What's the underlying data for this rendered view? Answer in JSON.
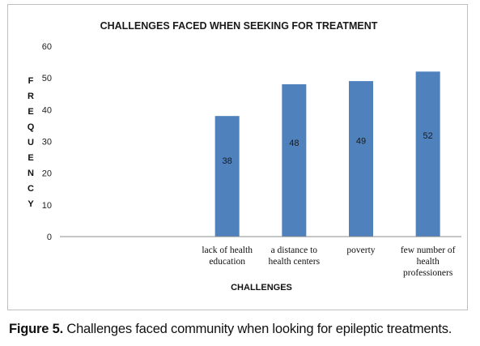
{
  "chart_data": {
    "type": "bar",
    "title": "CHALLENGES FACED WHEN SEEKING FOR TREATMENT",
    "xlabel": "CHALLENGES",
    "ylabel": "FREQUENCY",
    "categories": [
      "",
      "",
      "lack of health education",
      "a distance to health centers",
      "poverty",
      "few number of health professioners"
    ],
    "category_lines": [
      [],
      [],
      [
        "lack of health",
        "education"
      ],
      [
        "a distance to",
        "health centers"
      ],
      [
        "poverty"
      ],
      [
        "few number of",
        "health",
        "professioners"
      ]
    ],
    "series": [
      {
        "values": [
          null,
          null,
          38,
          48,
          49,
          52
        ]
      }
    ],
    "data_labels": [
      "",
      "",
      "38",
      "48",
      "49",
      "52"
    ],
    "ylim": [
      0,
      60
    ],
    "yticks": [
      0,
      10,
      20,
      30,
      40,
      50,
      60
    ],
    "grid": false,
    "legend": "none",
    "bar_color": "#4f81bd"
  },
  "caption": {
    "label": "Figure 5.",
    "text": " Challenges faced community when looking for epileptic treatments."
  }
}
